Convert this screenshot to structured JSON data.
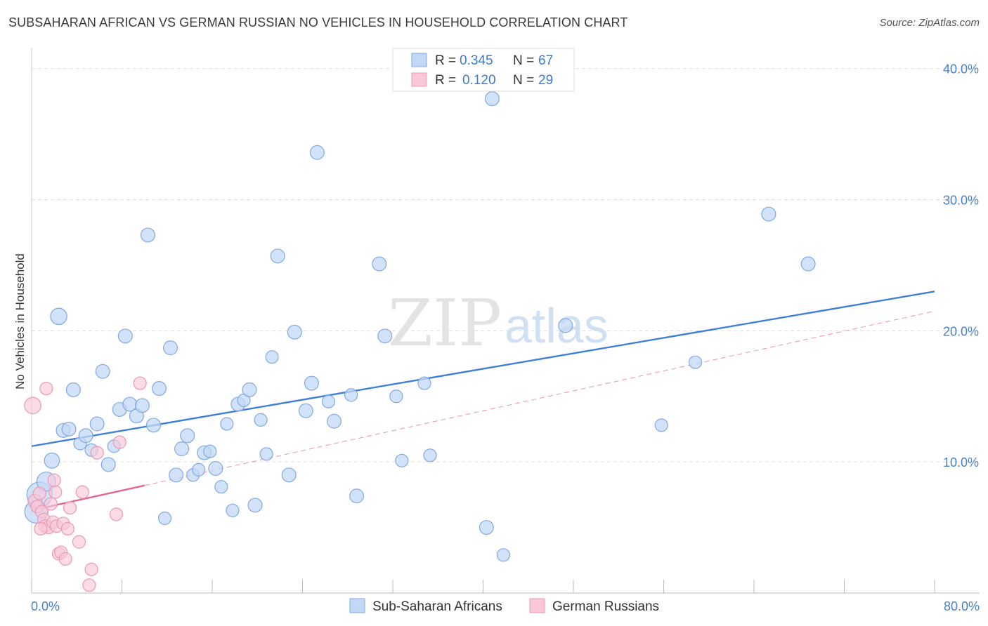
{
  "title": "SUBSAHARAN AFRICAN VS GERMAN RUSSIAN NO VEHICLES IN HOUSEHOLD CORRELATION CHART",
  "source": "Source: ZipAtlas.com",
  "watermark": {
    "part1": "ZIP",
    "part2": "atlas"
  },
  "legend": {
    "rows": [
      {
        "r_label": "R =",
        "r_value": "0.345",
        "n_label": "N =",
        "n_value": "67"
      },
      {
        "r_label": "R =",
        "r_value": "0.120",
        "n_label": "N =",
        "n_value": "29"
      }
    ]
  },
  "colors": {
    "blue": "#3f7fd6",
    "blue_fill": "#c3d8f5",
    "pink": "#e2648f",
    "pink_fill": "#f8c8d8",
    "grid": "#dddddd"
  },
  "chart_data": {
    "type": "scatter",
    "title": "SUBSAHARAN AFRICAN VS GERMAN RUSSIAN NO VEHICLES IN HOUSEHOLD CORRELATION CHART",
    "xlabel": "",
    "ylabel": "No Vehicles in Household",
    "xlim": [
      0,
      80
    ],
    "ylim": [
      0,
      41
    ],
    "x_tick_labels": [
      "0.0%",
      "80.0%"
    ],
    "y_ticks": [
      10,
      20,
      30,
      40
    ],
    "y_tick_labels": [
      "10.0%",
      "20.0%",
      "30.0%",
      "40.0%"
    ],
    "series": [
      {
        "name": "Sub-Saharan Africans",
        "color": "#3f7fd6",
        "trend": {
          "x": [
            0,
            80
          ],
          "y": [
            11.2,
            23.0
          ],
          "style": "solid"
        },
        "points": [
          [
            0.4,
            6.2,
            1.8
          ],
          [
            0.7,
            7.5,
            2.0
          ],
          [
            1.3,
            8.5,
            1.5
          ],
          [
            1.8,
            10.1,
            1.2
          ],
          [
            2.4,
            21.1,
            1.3
          ],
          [
            2.8,
            12.4,
            1.1
          ],
          [
            3.3,
            12.5,
            1.1
          ],
          [
            3.7,
            15.5,
            1.1
          ],
          [
            4.3,
            11.4,
            1.0
          ],
          [
            4.8,
            12.0,
            1.1
          ],
          [
            5.3,
            10.9,
            1.0
          ],
          [
            5.8,
            12.9,
            1.1
          ],
          [
            6.3,
            16.9,
            1.1
          ],
          [
            6.8,
            9.8,
            1.1
          ],
          [
            7.3,
            11.2,
            1.0
          ],
          [
            7.8,
            14.0,
            1.1
          ],
          [
            8.3,
            19.6,
            1.1
          ],
          [
            8.7,
            14.4,
            1.1
          ],
          [
            9.3,
            13.5,
            1.1
          ],
          [
            9.8,
            14.3,
            1.1
          ],
          [
            10.3,
            27.3,
            1.1
          ],
          [
            10.8,
            12.8,
            1.1
          ],
          [
            11.3,
            15.6,
            1.1
          ],
          [
            11.8,
            5.7,
            1.0
          ],
          [
            12.3,
            18.7,
            1.1
          ],
          [
            12.8,
            9.0,
            1.1
          ],
          [
            13.3,
            11.0,
            1.1
          ],
          [
            13.8,
            12.0,
            1.1
          ],
          [
            14.3,
            9.0,
            1.0
          ],
          [
            14.8,
            9.4,
            1.0
          ],
          [
            15.3,
            10.7,
            1.1
          ],
          [
            15.8,
            10.8,
            1.0
          ],
          [
            16.3,
            9.5,
            1.1
          ],
          [
            16.8,
            8.1,
            1.0
          ],
          [
            17.3,
            12.9,
            1.0
          ],
          [
            17.8,
            6.3,
            1.0
          ],
          [
            18.3,
            14.4,
            1.1
          ],
          [
            18.8,
            14.7,
            1.0
          ],
          [
            19.3,
            15.5,
            1.1
          ],
          [
            19.8,
            6.7,
            1.1
          ],
          [
            20.3,
            13.2,
            1.0
          ],
          [
            20.8,
            10.6,
            1.0
          ],
          [
            21.3,
            18.0,
            1.0
          ],
          [
            21.8,
            25.7,
            1.1
          ],
          [
            22.8,
            9.0,
            1.1
          ],
          [
            23.3,
            19.9,
            1.1
          ],
          [
            24.3,
            13.9,
            1.1
          ],
          [
            24.8,
            16.0,
            1.1
          ],
          [
            25.3,
            33.6,
            1.1
          ],
          [
            26.3,
            14.6,
            1.0
          ],
          [
            26.8,
            13.1,
            1.1
          ],
          [
            28.3,
            15.1,
            1.0
          ],
          [
            28.8,
            7.4,
            1.1
          ],
          [
            30.8,
            25.1,
            1.1
          ],
          [
            31.3,
            19.6,
            1.1
          ],
          [
            32.3,
            15.0,
            1.0
          ],
          [
            32.8,
            10.1,
            1.0
          ],
          [
            34.8,
            16.0,
            1.0
          ],
          [
            35.3,
            10.5,
            1.0
          ],
          [
            40.3,
            5.0,
            1.1
          ],
          [
            40.8,
            37.7,
            1.1
          ],
          [
            41.8,
            2.9,
            1.0
          ],
          [
            47.3,
            20.4,
            1.1
          ],
          [
            55.8,
            12.8,
            1.0
          ],
          [
            58.8,
            17.6,
            1.0
          ],
          [
            65.3,
            28.9,
            1.1
          ],
          [
            68.8,
            25.1,
            1.1
          ]
        ]
      },
      {
        "name": "German Russians",
        "color": "#e2648f",
        "trend": {
          "x": [
            0,
            10
          ],
          "y": [
            6.3,
            8.2
          ],
          "style": "solid"
        },
        "trend_extended": {
          "x": [
            10,
            80
          ],
          "y": [
            8.2,
            21.5
          ],
          "style": "dashed"
        },
        "points": [
          [
            0.1,
            14.3,
            1.3
          ],
          [
            0.3,
            7.0,
            1.1
          ],
          [
            0.5,
            6.6,
            1.0
          ],
          [
            0.7,
            7.6,
            1.0
          ],
          [
            0.9,
            6.2,
            1.0
          ],
          [
            1.1,
            5.6,
            1.0
          ],
          [
            1.2,
            5.1,
            1.0
          ],
          [
            1.3,
            15.6,
            1.0
          ],
          [
            1.5,
            5.0,
            1.0
          ],
          [
            1.7,
            6.8,
            1.0
          ],
          [
            1.9,
            5.4,
            1.0
          ],
          [
            2.1,
            7.7,
            1.0
          ],
          [
            2.2,
            5.1,
            1.0
          ],
          [
            2.4,
            3.0,
            1.0
          ],
          [
            2.6,
            3.1,
            1.0
          ],
          [
            2.8,
            5.3,
            1.0
          ],
          [
            3.0,
            2.6,
            1.0
          ],
          [
            3.2,
            4.9,
            1.0
          ],
          [
            3.4,
            6.5,
            1.0
          ],
          [
            4.2,
            3.9,
            1.0
          ],
          [
            4.5,
            7.7,
            1.0
          ],
          [
            5.1,
            0.6,
            1.0
          ],
          [
            5.3,
            1.8,
            1.0
          ],
          [
            5.8,
            10.7,
            1.0
          ],
          [
            7.5,
            6.0,
            1.0
          ],
          [
            7.8,
            11.5,
            1.0
          ],
          [
            9.6,
            16.0,
            1.0
          ],
          [
            0.8,
            4.9,
            1.0
          ],
          [
            2.0,
            8.6,
            1.0
          ]
        ]
      }
    ]
  }
}
